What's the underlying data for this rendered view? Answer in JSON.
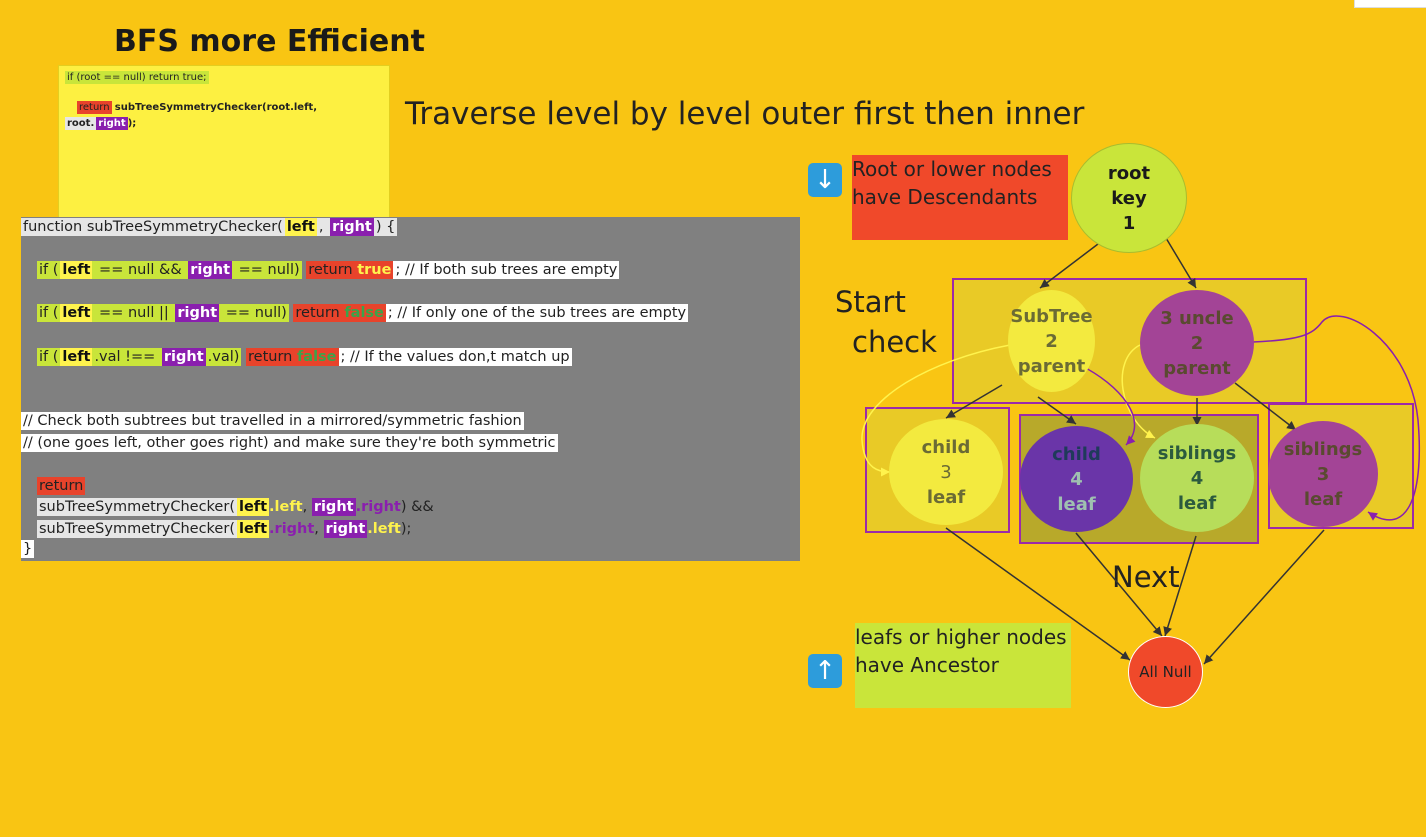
{
  "title": "BFS more Efficient",
  "sticky": {
    "line1": "if (root == null) return true;",
    "return_kw": "return",
    "call": "subTreeSymmetryChecker(root.left,",
    "root_word": "root.",
    "right_word": "right",
    "end": ");"
  },
  "code": {
    "fn_prefix": "function subTreeSymmetryChecker(",
    "left": "left",
    "comma": ", ",
    "right": "right",
    "fn_suffix": ") {",
    "if1_a": "if (",
    "if1_b": " == null && ",
    "if1_c": " == null)",
    "return_kw": "return",
    "true_kw": "true",
    "false_kw": "false",
    "if1_comment": "; // If both sub trees are empty",
    "if2_b": " == null || ",
    "if2_c": " == null)",
    "if2_comment": "; // If only one of the sub trees are empty",
    "if3_b": ".val !== ",
    "if3_c": ".val)",
    "if3_comment": "; // If the values don,t match up",
    "comment1": " // Check both subtrees but travelled in a mirrored/symmetric fashion",
    "comment2": " // (one goes left, other goes right)  and make sure they're both symmetric",
    "ret": "return",
    "call_name": "subTreeSymmetryChecker(",
    "dot_left": ".left",
    "dot_right": ".right",
    "and": ") &&",
    "close": ");",
    "brace": "}"
  },
  "heading": "Traverse level by level outer first then inner",
  "notes": {
    "desc": "Root or lower nodes have Descendants",
    "anc": "leafs or higher nodes have Ancestor",
    "start": "Start",
    "check": "check",
    "next": "Next"
  },
  "icons": {
    "down": "down-arrow-icon",
    "up": "up-arrow-icon"
  },
  "nodes": {
    "root": [
      "root",
      "key",
      "1"
    ],
    "subtree": [
      "SubTree",
      "2",
      "parent"
    ],
    "uncle": [
      "3 uncle",
      "2",
      "parent"
    ],
    "child3": [
      "child",
      "3",
      "leaf"
    ],
    "child4": [
      "child",
      "4",
      "leaf"
    ],
    "sib4": [
      "siblings",
      "4",
      "leaf"
    ],
    "sib3": [
      "siblings",
      "3",
      "leaf"
    ],
    "null": "All Null"
  },
  "colors": {
    "background": "#F9C513",
    "lime": "#C9E53A",
    "purple": "#8A1FAE",
    "red": "#E8432B",
    "yellow": "#FFF34D"
  }
}
